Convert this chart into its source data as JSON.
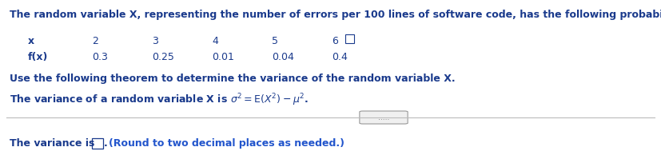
{
  "bg_color": "#ffffff",
  "body_color": "#1a3a8c",
  "title_text": "The random variable X, representing the number of errors per 100 lines of software code, has the following probability distribution.",
  "table_x_label": "x",
  "table_fx_label": "f(x)",
  "x_values": [
    "2",
    "3",
    "4",
    "5",
    "6"
  ],
  "fx_values": [
    "0.3",
    "0.25",
    "0.01",
    "0.04",
    "0.4"
  ],
  "theorem_text": "Use the following theorem to determine the variance of the random variable X.",
  "variance_bottom_text": "The variance is",
  "round_text": "(Round to two decimal places as needed.)",
  "dots_text": ".....",
  "title_fontsize": 9.0,
  "body_fontsize": 9.0
}
